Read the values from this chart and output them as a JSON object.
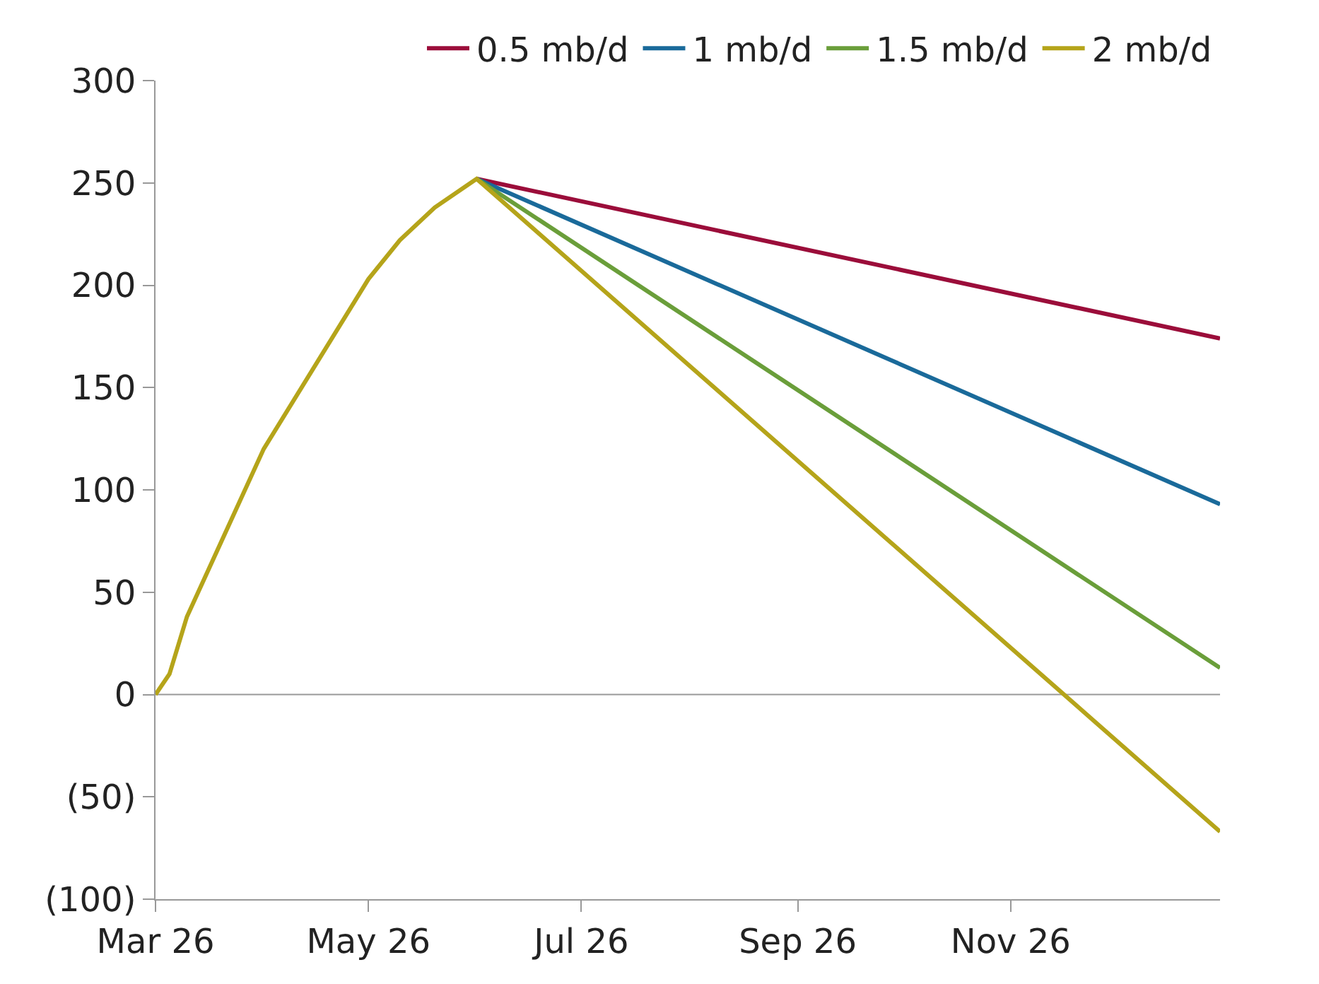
{
  "chart_data": {
    "type": "line",
    "x": [
      "2026-03-01",
      "2026-03-05",
      "2026-03-10",
      "2026-04-01",
      "2026-05-01",
      "2026-05-10",
      "2026-05-20",
      "2026-06-01",
      "2026-12-31"
    ],
    "series": [
      {
        "name": "0.5 mb/d",
        "color": "#9b0d3a",
        "values": [
          null,
          null,
          null,
          null,
          null,
          null,
          null,
          252,
          174
        ]
      },
      {
        "name": "1 mb/d",
        "color": "#1a6a9a",
        "values": [
          null,
          null,
          null,
          null,
          null,
          null,
          null,
          252,
          93
        ]
      },
      {
        "name": "1.5 mb/d",
        "color": "#6a9e3a",
        "values": [
          null,
          null,
          null,
          null,
          null,
          null,
          null,
          252,
          13
        ]
      },
      {
        "name": "2 mb/d",
        "color": "#b5a41a",
        "values": [
          0,
          10,
          38,
          120,
          203,
          222,
          238,
          252,
          -67
        ]
      }
    ],
    "xlim": [
      "2026-03-01",
      "2026-12-31"
    ],
    "xticks": [
      {
        "value": "2026-03-01",
        "label": "Mar 26"
      },
      {
        "value": "2026-05-01",
        "label": "May 26"
      },
      {
        "value": "2026-07-01",
        "label": "Jul 26"
      },
      {
        "value": "2026-09-01",
        "label": "Sep 26"
      },
      {
        "value": "2026-11-01",
        "label": "Nov 26"
      }
    ],
    "ylim": [
      -100,
      300
    ],
    "yticks": [
      {
        "value": -100,
        "label": "(100)"
      },
      {
        "value": -50,
        "label": "(50)"
      },
      0,
      50,
      100,
      150,
      200,
      250,
      300
    ],
    "ref_lines": [
      {
        "axis": "y",
        "value": 0,
        "color": "#999999"
      }
    ],
    "grid": false,
    "legend": "top",
    "marker": "none",
    "line_style": "solid"
  }
}
